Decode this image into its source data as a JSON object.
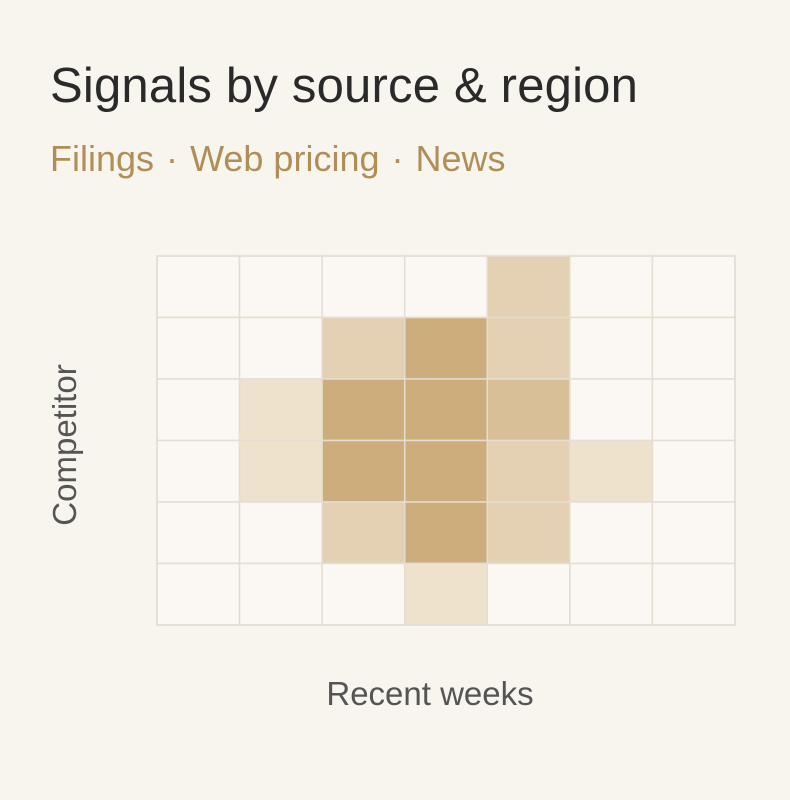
{
  "title": "Signals by source & region",
  "subtitle_parts": [
    "Filings",
    "Web pricing",
    "News"
  ],
  "subtitle_separator": "·",
  "colors": {
    "background": "#f8f4ee",
    "cell_empty": "#fbf8f3",
    "cell_low": "#efe2cd",
    "cell_high": "#c9a56f",
    "grid_line": "#e4ddd2",
    "accent": "#b08f57"
  },
  "chart_data": {
    "type": "heatmap",
    "xlabel": "Recent weeks",
    "ylabel": "Competitor",
    "rows": 6,
    "cols": 7,
    "scale": [
      0,
      5
    ],
    "values": [
      [
        0,
        0,
        0,
        0,
        2,
        0,
        0
      ],
      [
        0,
        0,
        2,
        4,
        2,
        0,
        0
      ],
      [
        0,
        1,
        4,
        4,
        3,
        0,
        0
      ],
      [
        0,
        1,
        4,
        4,
        2,
        1,
        0
      ],
      [
        0,
        0,
        2,
        4,
        2,
        0,
        0
      ],
      [
        0,
        0,
        0,
        1,
        0,
        0,
        0
      ]
    ]
  }
}
